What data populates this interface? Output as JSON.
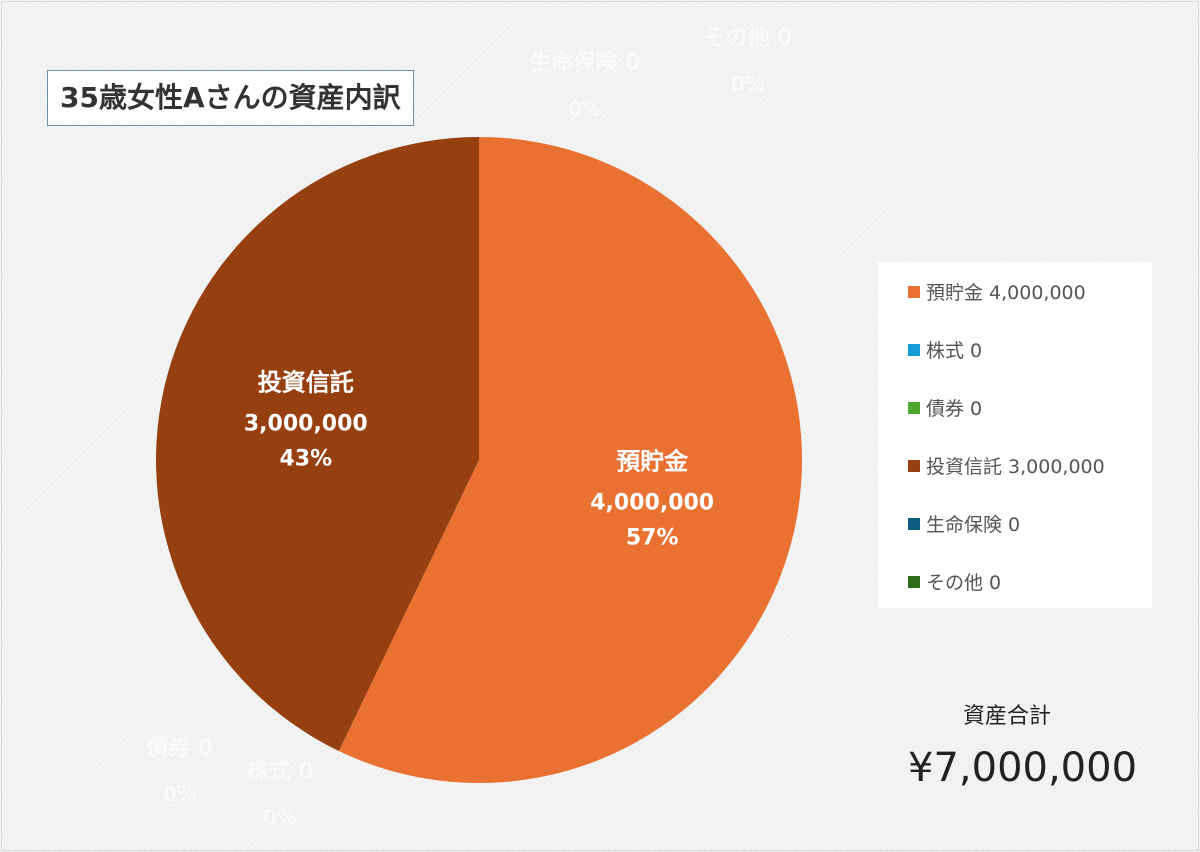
{
  "chart_data": {
    "type": "pie",
    "title": "35歳女性Aさんの資産内訳",
    "start_angle": "top",
    "direction": "clockwise",
    "slices": [
      {
        "label": "預貯金",
        "value": 4000000,
        "value_label": "4,000,000",
        "percent": "57%",
        "color": "#E97132"
      },
      {
        "label": "株式",
        "value": 0,
        "value_label": "0",
        "percent": "0%",
        "color": "#159CD7"
      },
      {
        "label": "債券",
        "value": 0,
        "value_label": "0",
        "percent": "0%",
        "color": "#4EA72E"
      },
      {
        "label": "投資信託",
        "value": 3000000,
        "value_label": "3,000,000",
        "percent": "43%",
        "color": "#963F0F"
      },
      {
        "label": "生命保険",
        "value": 0,
        "value_label": "0",
        "percent": "0%",
        "color": "#0F5C82"
      },
      {
        "label": "その他",
        "value": 0,
        "value_label": "0",
        "percent": "0%",
        "color": "#2E6B1D"
      }
    ],
    "legend_position": "right"
  },
  "total": {
    "label": "資産合計",
    "value": "¥7,000,000"
  }
}
